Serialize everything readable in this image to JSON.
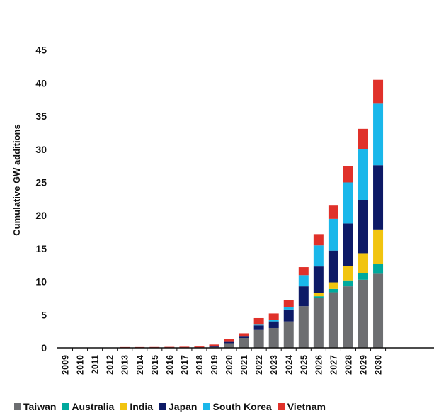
{
  "chart_data": {
    "type": "bar",
    "stacked": true,
    "title": "",
    "xlabel": "",
    "ylabel": "Cumulative GW additions",
    "ylim": [
      0,
      45
    ],
    "yticks": [
      0,
      5,
      10,
      15,
      20,
      25,
      30,
      35,
      40,
      45
    ],
    "grid": false,
    "legend_position": "bottom",
    "categories": [
      "2009",
      "2010",
      "2011",
      "2012",
      "2013",
      "2014",
      "2015",
      "2016",
      "2017",
      "2018",
      "2019",
      "2020",
      "2021",
      "2022",
      "2023",
      "2024",
      "2025",
      "2026",
      "2027",
      "2028",
      "2029",
      "2030"
    ],
    "series": [
      {
        "name": "Taiwan",
        "color": "#6d6e71",
        "values": [
          0,
          0,
          0,
          0,
          0.02,
          0.02,
          0.03,
          0.03,
          0.05,
          0.05,
          0.1,
          0.7,
          1.5,
          2.7,
          3.0,
          4.0,
          6.3,
          7.5,
          8.4,
          9.3,
          10.3,
          11.2
        ]
      },
      {
        "name": "Australia",
        "color": "#00a99d",
        "values": [
          0,
          0,
          0,
          0,
          0,
          0,
          0,
          0,
          0,
          0,
          0,
          0,
          0,
          0,
          0,
          0,
          0,
          0.3,
          0.5,
          0.9,
          1.0,
          1.5
        ]
      },
      {
        "name": "India",
        "color": "#f1c40f",
        "values": [
          0,
          0,
          0,
          0,
          0,
          0,
          0,
          0,
          0,
          0,
          0,
          0,
          0,
          0,
          0,
          0,
          0,
          0.5,
          1.0,
          2.2,
          3.0,
          5.2
        ]
      },
      {
        "name": "Japan",
        "color": "#0d1a66",
        "values": [
          0,
          0,
          0,
          0,
          0,
          0,
          0,
          0,
          0,
          0,
          0.1,
          0.2,
          0.3,
          0.7,
          1.0,
          1.8,
          3.0,
          4.0,
          4.8,
          6.4,
          8.0,
          9.7
        ]
      },
      {
        "name": "South Korea",
        "color": "#1ab7ea",
        "values": [
          0,
          0,
          0,
          0,
          0,
          0,
          0,
          0,
          0,
          0,
          0,
          0,
          0,
          0.1,
          0.2,
          0.3,
          1.7,
          3.2,
          4.8,
          6.2,
          7.7,
          9.3
        ]
      },
      {
        "name": "Vietnam",
        "color": "#e0312a",
        "values": [
          0,
          0,
          0,
          0,
          0.1,
          0.1,
          0.1,
          0.12,
          0.12,
          0.15,
          0.3,
          0.4,
          0.4,
          1.0,
          1.0,
          1.1,
          1.2,
          1.7,
          2.0,
          2.5,
          3.1,
          3.6
        ]
      }
    ]
  }
}
